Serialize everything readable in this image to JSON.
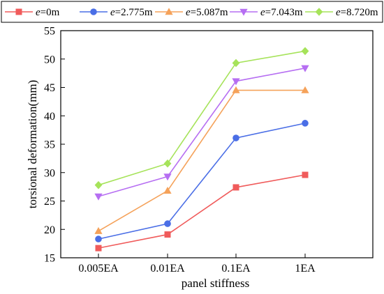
{
  "chart_data": {
    "type": "line",
    "categories": [
      "0.005EA",
      "0.01EA",
      "0.1EA",
      "1EA"
    ],
    "xlabel": "panel stiffness",
    "ylabel": "torsional deformation(mm)",
    "ylim": [
      15,
      55
    ],
    "yticks": [
      15,
      20,
      25,
      30,
      35,
      40,
      45,
      50,
      55
    ],
    "grid": false,
    "legend_position": "top",
    "series": [
      {
        "name_var": "e",
        "name_value": "=0m",
        "color": "#f05b5b",
        "marker": "square",
        "values": [
          16.7,
          19.1,
          27.4,
          29.6
        ]
      },
      {
        "name_var": "e",
        "name_value": "=2.775m",
        "color": "#4a6ee6",
        "marker": "circle",
        "values": [
          18.3,
          21.0,
          36.1,
          38.7
        ]
      },
      {
        "name_var": "e",
        "name_value": "=5.087m",
        "color": "#f5a25a",
        "marker": "triangle-up",
        "values": [
          19.7,
          26.8,
          44.5,
          44.5
        ]
      },
      {
        "name_var": "e",
        "name_value": "=7.043m",
        "color": "#b66ef2",
        "marker": "triangle-down",
        "values": [
          25.8,
          29.3,
          46.1,
          48.4
        ]
      },
      {
        "name_var": "e",
        "name_value": "=8.720m",
        "color": "#a6e35a",
        "marker": "diamond",
        "values": [
          27.8,
          31.6,
          49.3,
          51.4
        ]
      }
    ]
  }
}
